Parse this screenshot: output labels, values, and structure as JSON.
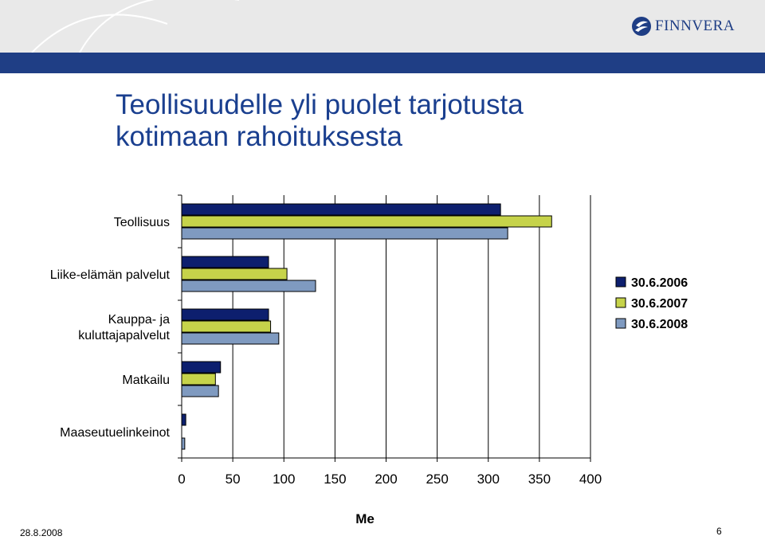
{
  "slide": {
    "title_line1": "Teollisuudelle yli puolet tarjotusta",
    "title_line2": "kotimaan rahoituksesta",
    "date": "28.8.2008",
    "page_number": "6"
  },
  "logo": {
    "text": "FINNVERA"
  },
  "colors": {
    "header_band": "#1f3e85",
    "series": [
      "#0d1f6e",
      "#c6d34a",
      "#7f9ac0"
    ]
  },
  "chart_data": {
    "type": "bar",
    "orientation": "horizontal",
    "categories": [
      [
        "Teollisuus"
      ],
      [
        "Liike-elämän palvelut"
      ],
      [
        "Kauppa- ja",
        "kuluttajapalvelut"
      ],
      [
        "Matkailu"
      ],
      [
        "Maaseutuelinkeinot"
      ]
    ],
    "series": [
      {
        "name": "30.6.2006",
        "values": [
          312,
          85,
          85,
          38,
          4
        ]
      },
      {
        "name": "30.6.2007",
        "values": [
          362,
          103,
          87,
          33,
          0
        ]
      },
      {
        "name": "30.6.2008",
        "values": [
          319,
          131,
          95,
          36,
          3
        ]
      }
    ],
    "xlim": [
      0,
      400
    ],
    "xticks": [
      0,
      50,
      100,
      150,
      200,
      250,
      300,
      350,
      400
    ],
    "xlabel": "Me",
    "legend_position": "right",
    "grid": true
  }
}
